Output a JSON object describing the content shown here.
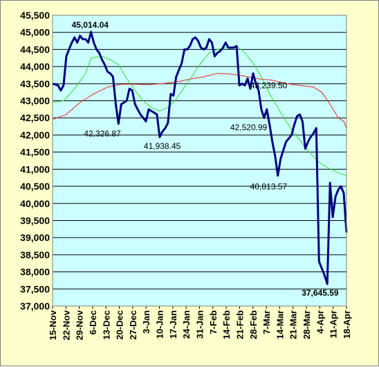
{
  "chart_data": {
    "type": "line",
    "title": "",
    "xlabel": "",
    "ylabel": "",
    "ylim": [
      37000,
      45500
    ],
    "ytick_step": 500,
    "y_tick_labels": [
      "37,000",
      "37,500",
      "38,000",
      "38,500",
      "39,000",
      "39,500",
      "40,000",
      "40,500",
      "41,000",
      "41,500",
      "42,000",
      "42,500",
      "43,000",
      "43,500",
      "44,000",
      "44,500",
      "45,000",
      "45,500"
    ],
    "x_tick_labels": [
      "15-Nov",
      "22-Nov",
      "29-Nov",
      "6-Dec",
      "13-Dec",
      "20-Dec",
      "27-Dec",
      "3-Jan",
      "10-Jan",
      "17-Jan",
      "24-Jan",
      "31-Jan",
      "7-Feb",
      "14-Feb",
      "21-Feb",
      "28-Feb",
      "7-Mar",
      "14-Mar",
      "21-Mar",
      "28-Mar",
      "4-Apr",
      "11-Apr",
      "18-Apr"
    ],
    "grid": true,
    "colors": {
      "plot_background": "#CCFFFF",
      "page_background": "#FFFFCC",
      "index_line": "#000080",
      "ma_short": "#33DD33",
      "ma_long": "#EE2222"
    },
    "series": [
      {
        "key": "index",
        "values": [
          [
            0,
            43500
          ],
          [
            2,
            43450
          ],
          [
            3,
            43300
          ],
          [
            4,
            43450
          ],
          [
            5,
            44300
          ],
          [
            6,
            44500
          ],
          [
            7,
            44700
          ],
          [
            8,
            44850
          ],
          [
            9,
            44700
          ],
          [
            10,
            44900
          ],
          [
            11,
            44800
          ],
          [
            12,
            44800
          ],
          [
            13,
            44700
          ],
          [
            14,
            45014.04
          ],
          [
            15,
            44700
          ],
          [
            16,
            44500
          ],
          [
            17,
            44400
          ],
          [
            18,
            44200
          ],
          [
            19,
            44050
          ],
          [
            20,
            43850
          ],
          [
            21,
            43800
          ],
          [
            22,
            43700
          ],
          [
            23,
            42900
          ],
          [
            24,
            42326.87
          ],
          [
            25,
            42900
          ],
          [
            26,
            42950
          ],
          [
            27,
            43000
          ],
          [
            28,
            43350
          ],
          [
            29,
            43300
          ],
          [
            30,
            42900
          ],
          [
            31,
            42750
          ],
          [
            32,
            42600
          ],
          [
            33,
            42500
          ],
          [
            34,
            42400
          ],
          [
            35,
            42750
          ],
          [
            36,
            42700
          ],
          [
            37,
            42650
          ],
          [
            38,
            42600
          ],
          [
            39,
            41938.45
          ],
          [
            40,
            42100
          ],
          [
            41,
            42200
          ],
          [
            42,
            42350
          ],
          [
            43,
            43200
          ],
          [
            44,
            43150
          ],
          [
            45,
            43700
          ],
          [
            46,
            43900
          ],
          [
            47,
            44100
          ],
          [
            48,
            44500
          ],
          [
            49,
            44500
          ],
          [
            50,
            44600
          ],
          [
            51,
            44800
          ],
          [
            52,
            44850
          ],
          [
            53,
            44750
          ],
          [
            54,
            44550
          ],
          [
            55,
            44500
          ],
          [
            56,
            44550
          ],
          [
            57,
            44800
          ],
          [
            58,
            44700
          ],
          [
            59,
            44300
          ],
          [
            60,
            44400
          ],
          [
            61,
            44450
          ],
          [
            62,
            44550
          ],
          [
            63,
            44700
          ],
          [
            64,
            44550
          ],
          [
            65,
            44550
          ],
          [
            66,
            44550
          ],
          [
            67,
            44600
          ],
          [
            68,
            43450
          ],
          [
            69,
            43500
          ],
          [
            70,
            43450
          ],
          [
            71,
            43650
          ],
          [
            72,
            43350
          ],
          [
            73,
            43800
          ],
          [
            74,
            43500
          ],
          [
            75,
            43300
          ],
          [
            76,
            42750
          ],
          [
            77,
            42500
          ],
          [
            78,
            42750
          ],
          [
            79,
            42300
          ],
          [
            80,
            41800
          ],
          [
            81,
            41400
          ],
          [
            82,
            40813.57
          ],
          [
            83,
            41300
          ],
          [
            84,
            41550
          ],
          [
            85,
            41800
          ],
          [
            86,
            41900
          ],
          [
            87,
            42000
          ],
          [
            88,
            42300
          ],
          [
            89,
            42550
          ],
          [
            90,
            42600
          ],
          [
            91,
            42400
          ],
          [
            92,
            41600
          ],
          [
            93,
            41800
          ],
          [
            94,
            41950
          ],
          [
            95,
            42050
          ],
          [
            96,
            42200
          ],
          [
            97,
            38300
          ],
          [
            98,
            38100
          ],
          [
            99,
            37900
          ],
          [
            100,
            37645.59
          ],
          [
            101,
            40600
          ],
          [
            102,
            39600
          ],
          [
            103,
            40200
          ],
          [
            104,
            40400
          ],
          [
            105,
            40500
          ],
          [
            106,
            40300
          ],
          [
            107,
            39150
          ]
        ]
      },
      {
        "key": "ma_short",
        "values": [
          [
            0,
            42950
          ],
          [
            4,
            43000
          ],
          [
            8,
            43350
          ],
          [
            12,
            43800
          ],
          [
            14,
            44250
          ],
          [
            18,
            44300
          ],
          [
            21,
            44200
          ],
          [
            24,
            44050
          ],
          [
            27,
            43650
          ],
          [
            30,
            43300
          ],
          [
            33,
            43000
          ],
          [
            36,
            42800
          ],
          [
            39,
            42700
          ],
          [
            42,
            42800
          ],
          [
            45,
            43050
          ],
          [
            48,
            43400
          ],
          [
            51,
            43750
          ],
          [
            54,
            44100
          ],
          [
            57,
            44400
          ],
          [
            60,
            44500
          ],
          [
            63,
            44550
          ],
          [
            67,
            44600
          ],
          [
            70,
            44400
          ],
          [
            73,
            44100
          ],
          [
            76,
            43700
          ],
          [
            79,
            43200
          ],
          [
            82,
            42800
          ],
          [
            85,
            42400
          ],
          [
            88,
            42050
          ],
          [
            91,
            41750
          ],
          [
            94,
            41450
          ],
          [
            97,
            41200
          ],
          [
            100,
            41050
          ],
          [
            104,
            40900
          ],
          [
            107,
            40800
          ]
        ]
      },
      {
        "key": "ma_long",
        "values": [
          [
            0,
            42450
          ],
          [
            5,
            42600
          ],
          [
            10,
            42950
          ],
          [
            15,
            43200
          ],
          [
            20,
            43400
          ],
          [
            25,
            43480
          ],
          [
            30,
            43480
          ],
          [
            35,
            43470
          ],
          [
            40,
            43500
          ],
          [
            45,
            43550
          ],
          [
            50,
            43630
          ],
          [
            55,
            43700
          ],
          [
            60,
            43800
          ],
          [
            65,
            43780
          ],
          [
            70,
            43720
          ],
          [
            75,
            43640
          ],
          [
            80,
            43600
          ],
          [
            85,
            43500
          ],
          [
            90,
            43450
          ],
          [
            95,
            43400
          ],
          [
            98,
            43250
          ],
          [
            101,
            42900
          ],
          [
            104,
            42500
          ],
          [
            106,
            42400
          ],
          [
            107,
            42200
          ]
        ]
      }
    ],
    "annotations": [
      {
        "text": "45,014.04",
        "x": 14,
        "y": 45014.04,
        "bold": true
      },
      {
        "text": "42,326.87",
        "x": 24,
        "y": 42326.87,
        "bold": false
      },
      {
        "text": "41,938.45",
        "x": 39,
        "y": 41938.45,
        "bold": false
      },
      {
        "text": "43,239.50",
        "x": 77,
        "y": 43239.5,
        "bold": false
      },
      {
        "text": "42,520.99",
        "x": 74,
        "y": 42520.99,
        "bold": false
      },
      {
        "text": "40,813.57",
        "x": 82,
        "y": 40813.57,
        "bold": false
      },
      {
        "text": "37,645.59",
        "x": 100,
        "y": 37645.59,
        "bold": true
      }
    ]
  }
}
